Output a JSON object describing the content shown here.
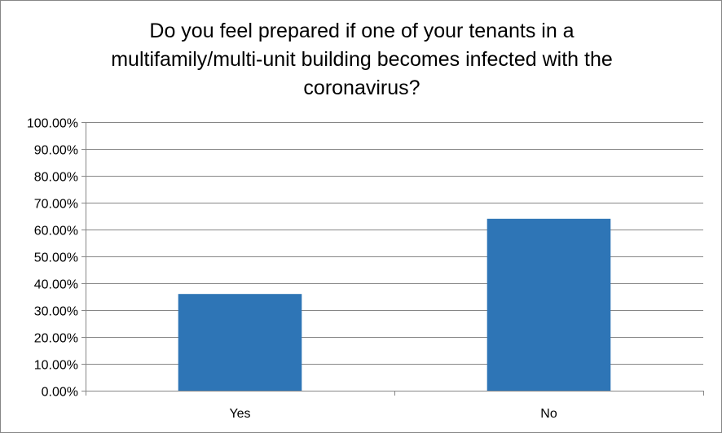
{
  "chart_data": {
    "type": "bar",
    "title_lines": [
      "Do you feel prepared if one of your tenants in a",
      "multifamily/multi-unit building becomes infected with the",
      "coronavirus?"
    ],
    "categories": [
      "Yes",
      "No"
    ],
    "values": [
      0.36,
      0.64
    ],
    "ylim": [
      0,
      1
    ],
    "y_ticks": [
      "0.00%",
      "10.00%",
      "20.00%",
      "30.00%",
      "40.00%",
      "50.00%",
      "60.00%",
      "70.00%",
      "80.00%",
      "90.00%",
      "100.00%"
    ],
    "bar_color": "#2E75B6",
    "grid": true,
    "legend": "none"
  }
}
